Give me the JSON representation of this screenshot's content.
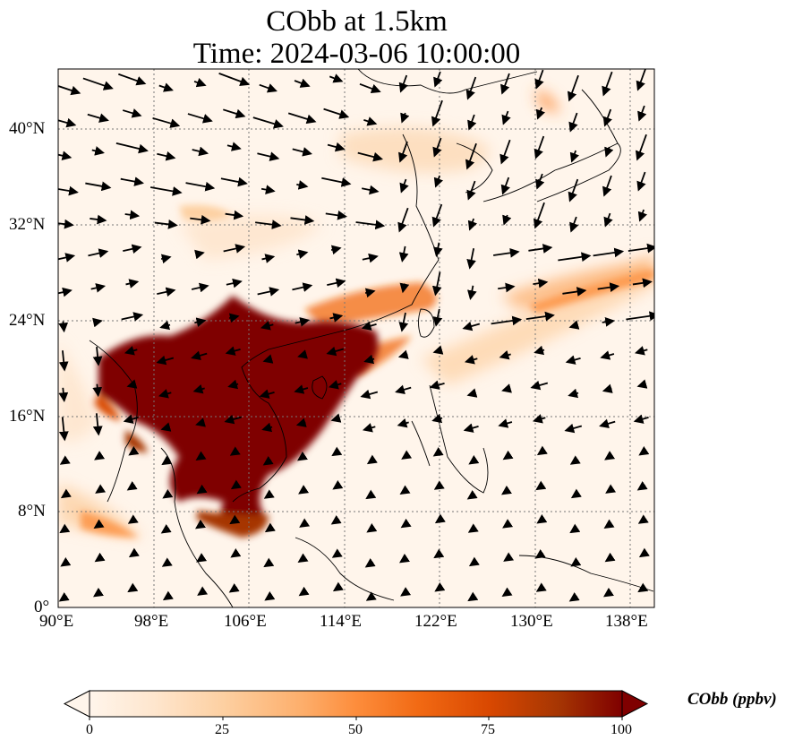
{
  "title_line1": "CObb at 1.5km",
  "title_line2": "Time: 2024-03-06 10:00:00",
  "lon_ticks": [
    "90°E",
    "98°E",
    "106°E",
    "114°E",
    "122°E",
    "130°E",
    "138°E"
  ],
  "lat_ticks": [
    "40°N",
    "32°N",
    "24°N",
    "16°N",
    "8°N",
    "0°"
  ],
  "colorbar": {
    "label": "CObb (ppbv)",
    "ticks": [
      "0",
      "25",
      "50",
      "75",
      "100"
    ],
    "colors": [
      "#fff5eb",
      "#fee6ce",
      "#fdd0a2",
      "#fdae6b",
      "#fd8d3c",
      "#f16913",
      "#d94801",
      "#a63603",
      "#7f0000"
    ]
  },
  "map_extent": {
    "lon": [
      90,
      140
    ],
    "lat": [
      0,
      45
    ]
  },
  "colors": {
    "coast": "#000000",
    "grid": "#777777",
    "plume_max": "#7f0000",
    "background": "#fff5eb"
  }
}
